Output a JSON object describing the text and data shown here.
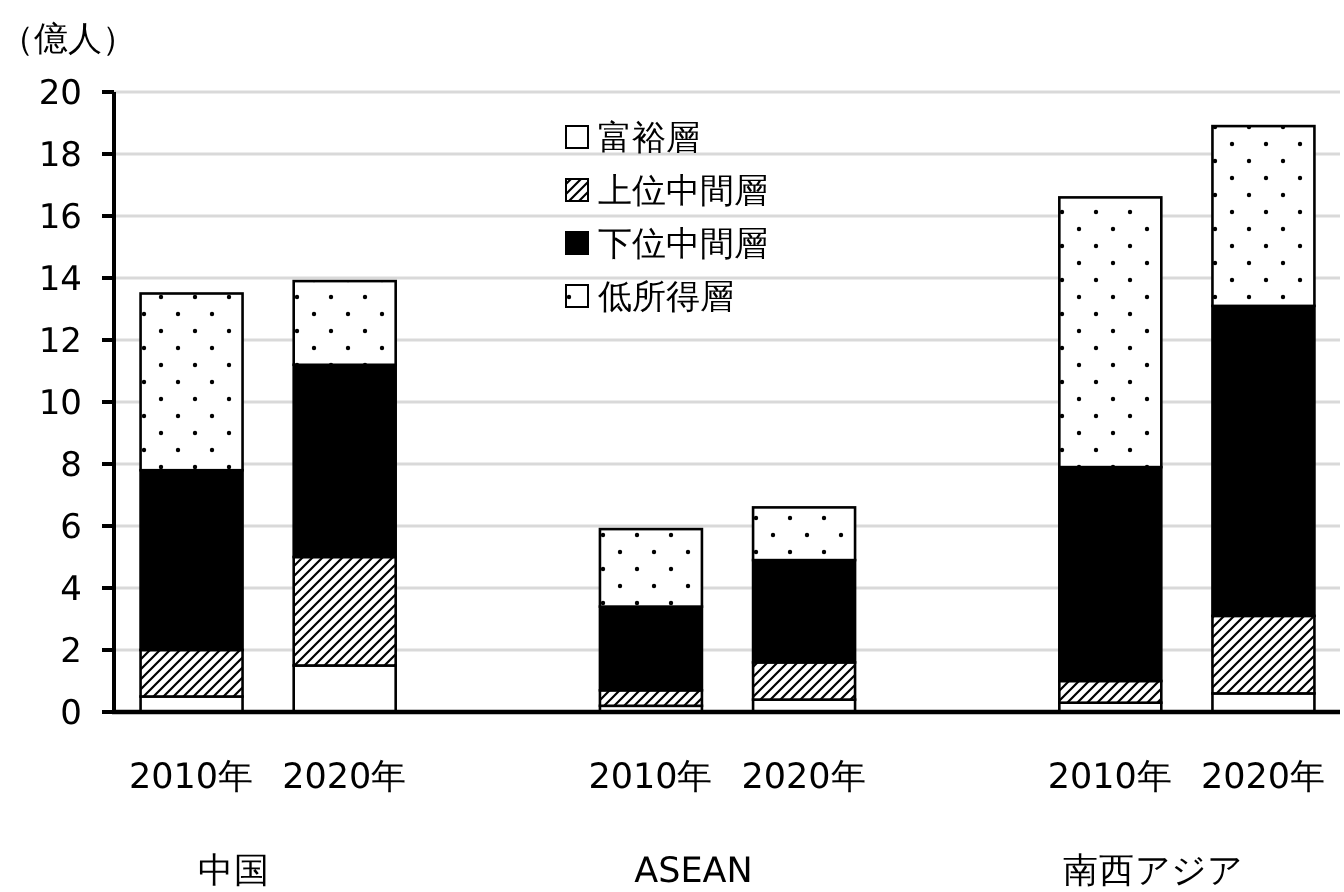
{
  "chart_data": {
    "type": "bar",
    "stacked": true,
    "ylabel": "（億人）",
    "categories": [
      "2010年",
      "2020年",
      null,
      "2010年",
      "2020年",
      null,
      "2010年",
      "2020年"
    ],
    "series": [
      {
        "name": "富裕層",
        "color": "#ffffff",
        "values": [
          0.5,
          1.5,
          null,
          0.2,
          0.4,
          null,
          0.3,
          0.6
        ]
      },
      {
        "name": "上位中間層",
        "color": "#000000",
        "values": [
          1.5,
          3.5,
          null,
          0.5,
          1.2,
          null,
          0.7,
          2.5
        ]
      },
      {
        "name": "下位中間層",
        "color": "#000000",
        "values": [
          5.8,
          6.2,
          null,
          2.7,
          3.3,
          null,
          6.9,
          10.0
        ]
      },
      {
        "name": "低所得層",
        "color": "#000000",
        "values": [
          5.7,
          2.7,
          null,
          2.5,
          1.7,
          null,
          8.7,
          5.8
        ]
      }
    ],
    "ylim": [
      0,
      20
    ],
    "yticks": [
      0,
      2,
      4,
      6,
      8,
      10,
      12,
      14,
      16,
      18,
      20
    ],
    "grid": "y",
    "legend": "top",
    "annotations": [
      "中国",
      "ASEAN",
      "南西アジア"
    ]
  }
}
